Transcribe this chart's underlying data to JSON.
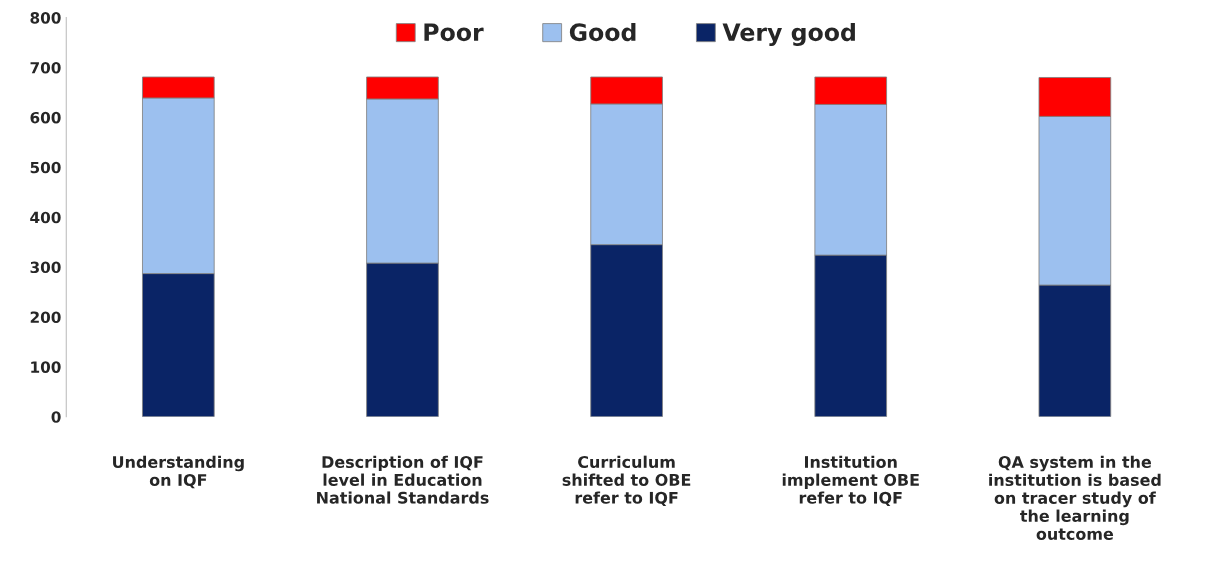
{
  "chart_data": {
    "type": "bar",
    "stacked": true,
    "categories": [
      "Understanding\non IQF",
      "Description of IQF\nlevel in Education\nNational Standards",
      "Curriculum\nshifted to OBE\nrefer to IQF",
      "Institution\nimplement OBE\nrefer to IQF",
      "QA system in the\ninstitution is based\non tracer study of\nthe learning\noutcome"
    ],
    "series": [
      {
        "name": "Very good",
        "color": "#0a2466",
        "values": [
          287,
          308,
          345,
          324,
          264
        ]
      },
      {
        "name": "Good",
        "color": "#9cc0ef",
        "values": [
          352,
          329,
          282,
          302,
          338
        ]
      },
      {
        "name": "Poor",
        "color": "#ff0000",
        "values": [
          42,
          44,
          54,
          55,
          78
        ]
      }
    ],
    "ylim": [
      0,
      800
    ],
    "yticks": [
      0,
      100,
      200,
      300,
      400,
      500,
      600,
      700,
      800
    ],
    "grid": false,
    "legend": "top"
  }
}
